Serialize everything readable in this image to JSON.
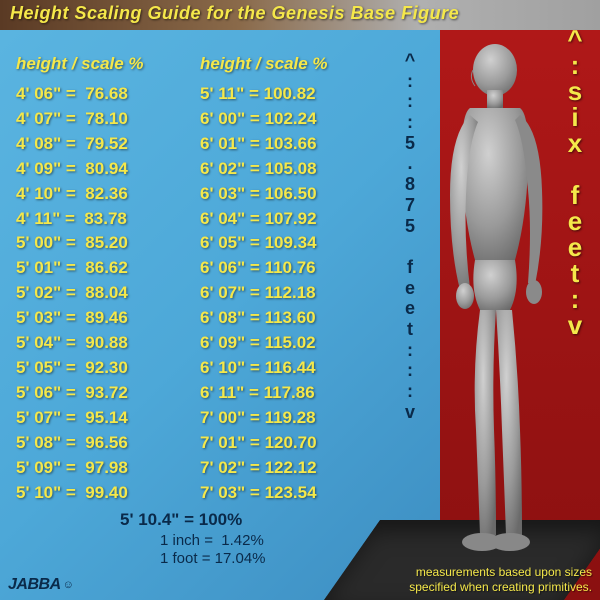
{
  "title": "Height Scaling Guide for the Genesis Base Figure",
  "colHeader": "height / scale %",
  "col1": [
    {
      "h": "4' 06\"",
      "s": "76.68"
    },
    {
      "h": "4' 07\"",
      "s": "78.10"
    },
    {
      "h": "4' 08\"",
      "s": "79.52"
    },
    {
      "h": "4' 09\"",
      "s": "80.94"
    },
    {
      "h": "4' 10\"",
      "s": "82.36"
    },
    {
      "h": "4' 11\"",
      "s": "83.78"
    },
    {
      "h": "5' 00\"",
      "s": "85.20"
    },
    {
      "h": "5' 01\"",
      "s": "86.62"
    },
    {
      "h": "5' 02\"",
      "s": "88.04"
    },
    {
      "h": "5' 03\"",
      "s": "89.46"
    },
    {
      "h": "5' 04\"",
      "s": "90.88"
    },
    {
      "h": "5' 05\"",
      "s": "92.30"
    },
    {
      "h": "5' 06\"",
      "s": "93.72"
    },
    {
      "h": "5' 07\"",
      "s": "95.14"
    },
    {
      "h": "5' 08\"",
      "s": "96.56"
    },
    {
      "h": "5' 09\"",
      "s": "97.98"
    },
    {
      "h": "5' 10\"",
      "s": "99.40"
    }
  ],
  "col2": [
    {
      "h": "5' 11\"",
      "s": "100.82"
    },
    {
      "h": "6' 00\"",
      "s": "102.24"
    },
    {
      "h": "6' 01\"",
      "s": "103.66"
    },
    {
      "h": "6' 02\"",
      "s": "105.08"
    },
    {
      "h": "6' 03\"",
      "s": "106.50"
    },
    {
      "h": "6' 04\"",
      "s": "107.92"
    },
    {
      "h": "6' 05\"",
      "s": "109.34"
    },
    {
      "h": "6' 06\"",
      "s": "110.76"
    },
    {
      "h": "6' 07\"",
      "s": "112.18"
    },
    {
      "h": "6' 08\"",
      "s": "113.60"
    },
    {
      "h": "6' 09\"",
      "s": "115.02"
    },
    {
      "h": "6' 10\"",
      "s": "116.44"
    },
    {
      "h": "6' 11\"",
      "s": "117.86"
    },
    {
      "h": "7' 00\"",
      "s": "119.28"
    },
    {
      "h": "7' 01\"",
      "s": "120.70"
    },
    {
      "h": "7' 02\"",
      "s": "122.12"
    },
    {
      "h": "7' 03\"",
      "s": "123.54"
    }
  ],
  "baseline": "5' 10.4\" = 100%",
  "conv_inch": "1 inch =  1.42%",
  "conv_foot": "1 foot = 17.04%",
  "vtext_mid_chars": [
    "^",
    ":",
    ":",
    ":",
    "5",
    ".",
    "8",
    "7",
    "5",
    " ",
    "f",
    "e",
    "e",
    "t",
    ":",
    ":",
    ":",
    "v"
  ],
  "vtext_right_chars": [
    "^",
    ":",
    "s",
    "i",
    "x",
    " ",
    "f",
    "e",
    "e",
    "t",
    ":",
    "v"
  ],
  "footnote": "measurements based upon sizes specified when creating primitives.",
  "logo": "JABBA",
  "colors": {
    "yellow": "#f5e84a",
    "darkblue": "#0a2a4a",
    "blue_bg": "#4da8d8",
    "red_bg": "#9a1212"
  }
}
